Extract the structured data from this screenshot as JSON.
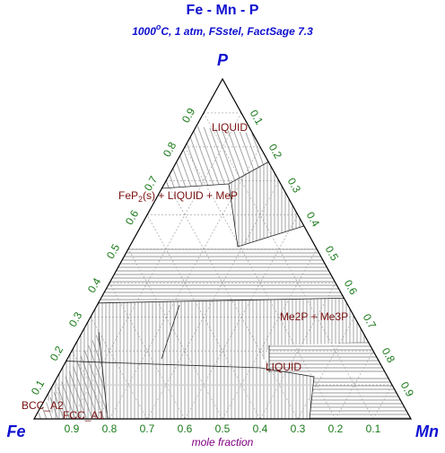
{
  "title": "Fe - Mn - P",
  "subtitle": [
    "1000",
    "o",
    "C, 1 atm, FSstel, FactSage 7.3"
  ],
  "vertices": {
    "top": "P",
    "left": "Fe",
    "right": "Mn"
  },
  "axis_title": "mole fraction",
  "left_ticks": [
    0.1,
    0.2,
    0.3,
    0.4,
    0.5,
    0.6,
    0.7,
    0.8,
    0.9
  ],
  "right_ticks": [
    0.1,
    0.2,
    0.3,
    0.4,
    0.5,
    0.6,
    0.7,
    0.8,
    0.9
  ],
  "bottom_ticks": [
    0.9,
    0.8,
    0.7,
    0.6,
    0.5,
    0.4,
    0.3,
    0.2,
    0.1
  ],
  "phases": [
    {
      "parts": [
        "LIQUID"
      ]
    },
    {
      "parts": [
        "FeP",
        "2",
        "(s) + LIQUID + MeP"
      ]
    },
    {
      "parts": [
        "Me2P + Me3P"
      ]
    },
    {
      "parts": [
        "LIQUID"
      ]
    },
    {
      "parts": [
        "BCC_A2"
      ]
    },
    {
      "parts": [
        "FCC_A1"
      ]
    }
  ]
}
